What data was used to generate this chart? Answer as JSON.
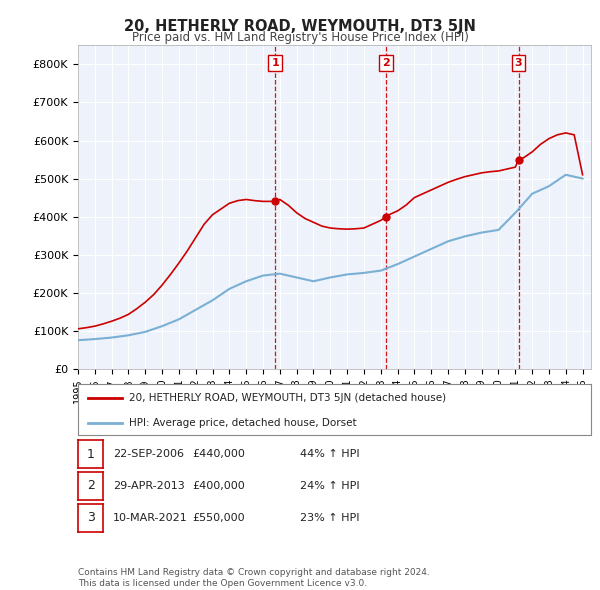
{
  "title": "20, HETHERLY ROAD, WEYMOUTH, DT3 5JN",
  "subtitle": "Price paid vs. HM Land Registry's House Price Index (HPI)",
  "ylim": [
    0,
    850000
  ],
  "yticks": [
    0,
    100000,
    200000,
    300000,
    400000,
    500000,
    600000,
    700000,
    800000
  ],
  "ytick_labels": [
    "£0",
    "£100K",
    "£200K",
    "£300K",
    "£400K",
    "£500K",
    "£600K",
    "£700K",
    "£800K"
  ],
  "background_color": "#ffffff",
  "plot_bg_color": "#eef2fa",
  "grid_color": "#ffffff",
  "hpi_color": "#7ab0d4",
  "price_color": "#cc0000",
  "vline_color": "#cc0000",
  "purchase_dates": [
    2006.73,
    2013.33,
    2021.19
  ],
  "purchase_prices": [
    440000,
    400000,
    550000
  ],
  "purchase_labels": [
    "1",
    "2",
    "3"
  ],
  "legend_label_price": "20, HETHERLY ROAD, WEYMOUTH, DT3 5JN (detached house)",
  "legend_label_hpi": "HPI: Average price, detached house, Dorset",
  "table_rows": [
    [
      "1",
      "22-SEP-2006",
      "£440,000",
      "44% ↑ HPI"
    ],
    [
      "2",
      "29-APR-2013",
      "£400,000",
      "24% ↑ HPI"
    ],
    [
      "3",
      "10-MAR-2021",
      "£550,000",
      "23% ↑ HPI"
    ]
  ],
  "footer_line1": "Contains HM Land Registry data © Crown copyright and database right 2024.",
  "footer_line2": "This data is licensed under the Open Government Licence v3.0.",
  "hpi_years": [
    1995,
    1996,
    1997,
    1998,
    1999,
    2000,
    2001,
    2002,
    2003,
    2004,
    2005,
    2006,
    2007,
    2008,
    2009,
    2010,
    2011,
    2012,
    2013,
    2014,
    2015,
    2016,
    2017,
    2018,
    2019,
    2020,
    2021,
    2022,
    2023,
    2024,
    2025
  ],
  "hpi_values": [
    75000,
    78000,
    82000,
    88000,
    97000,
    112000,
    130000,
    155000,
    180000,
    210000,
    230000,
    245000,
    250000,
    240000,
    230000,
    240000,
    248000,
    252000,
    258000,
    275000,
    295000,
    315000,
    335000,
    348000,
    358000,
    365000,
    410000,
    460000,
    480000,
    510000,
    500000
  ],
  "price_years": [
    1995.0,
    1995.5,
    1996.0,
    1996.5,
    1997.0,
    1997.5,
    1998.0,
    1998.5,
    1999.0,
    1999.5,
    2000.0,
    2000.5,
    2001.0,
    2001.5,
    2002.0,
    2002.5,
    2003.0,
    2003.5,
    2004.0,
    2004.5,
    2005.0,
    2005.5,
    2006.0,
    2006.5,
    2006.73,
    2007.0,
    2007.5,
    2008.0,
    2008.5,
    2009.0,
    2009.5,
    2010.0,
    2010.5,
    2011.0,
    2011.5,
    2012.0,
    2012.5,
    2013.0,
    2013.33,
    2013.5,
    2014.0,
    2014.5,
    2015.0,
    2015.5,
    2016.0,
    2016.5,
    2017.0,
    2017.5,
    2018.0,
    2018.5,
    2019.0,
    2019.5,
    2020.0,
    2020.5,
    2021.0,
    2021.19,
    2021.5,
    2022.0,
    2022.5,
    2023.0,
    2023.5,
    2024.0,
    2024.5,
    2025.0
  ],
  "price_values": [
    105000,
    108000,
    112000,
    118000,
    125000,
    133000,
    143000,
    158000,
    175000,
    195000,
    220000,
    248000,
    278000,
    310000,
    345000,
    380000,
    405000,
    420000,
    435000,
    442000,
    445000,
    442000,
    440000,
    440000,
    440000,
    445000,
    430000,
    410000,
    395000,
    385000,
    375000,
    370000,
    368000,
    367000,
    368000,
    370000,
    380000,
    390000,
    400000,
    405000,
    415000,
    430000,
    450000,
    460000,
    470000,
    480000,
    490000,
    498000,
    505000,
    510000,
    515000,
    518000,
    520000,
    525000,
    530000,
    550000,
    555000,
    570000,
    590000,
    605000,
    615000,
    620000,
    615000,
    510000
  ],
  "xlim": [
    1995,
    2025.5
  ],
  "xtick_years": [
    1995,
    1996,
    1997,
    1998,
    1999,
    2000,
    2001,
    2002,
    2003,
    2004,
    2005,
    2006,
    2007,
    2008,
    2009,
    2010,
    2011,
    2012,
    2013,
    2014,
    2015,
    2016,
    2017,
    2018,
    2019,
    2020,
    2021,
    2022,
    2023,
    2024,
    2025
  ]
}
